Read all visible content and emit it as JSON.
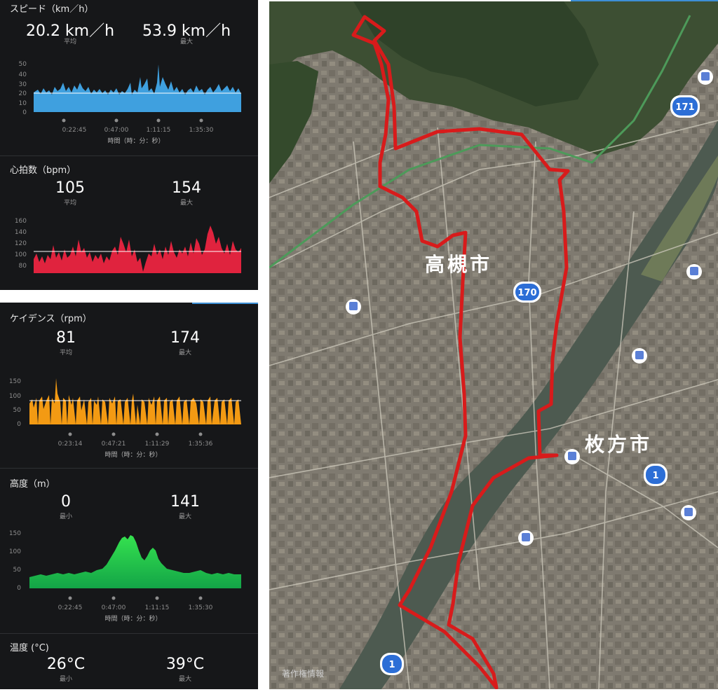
{
  "top_panel": {
    "speed": {
      "title": "スピード（km／h）",
      "avg_value": "20.2 km／h",
      "avg_label": "平均",
      "max_value": "53.9 km／h",
      "max_label": "最大",
      "color": "#3fa0df",
      "x_ticks": [
        "0:22:45",
        "0:47:00",
        "1:11:15",
        "1:35:30"
      ],
      "x_label": "時間（時：分：秒）",
      "y_ticks": [
        "50",
        "40",
        "30",
        "20",
        "10",
        "0"
      ]
    },
    "heart": {
      "title": "心拍数（bpm）",
      "avg_value": "105",
      "avg_label": "平均",
      "max_value": "154",
      "max_label": "最大",
      "color": "#e0233e",
      "y_ticks": [
        "160",
        "140",
        "120",
        "100",
        "80"
      ]
    }
  },
  "bottom_panel": {
    "cadence": {
      "title": "ケイデンス（rpm）",
      "avg_value": "81",
      "avg_label": "平均",
      "max_value": "174",
      "max_label": "最大",
      "color": "#f39a13",
      "x_ticks": [
        "0:23:14",
        "0:47:21",
        "1:11:29",
        "1:35:36"
      ],
      "x_label": "時間（時：分：秒）",
      "y_ticks": [
        "150",
        "100",
        "50",
        "0"
      ]
    },
    "altitude": {
      "title": "高度（m）",
      "min_value": "0",
      "min_label": "最小",
      "max_value": "141",
      "max_label": "最大",
      "color": "#22c94e",
      "x_ticks": [
        "0:22:45",
        "0:47:00",
        "1:11:15",
        "1:35:30"
      ],
      "x_label": "時間（時：分：秒）",
      "y_ticks": [
        "150",
        "100",
        "50",
        "0"
      ]
    },
    "temperature": {
      "title": "温度 (°C)",
      "min_value": "26°C",
      "min_label": "最小",
      "max_value": "39°C",
      "max_label": "最大"
    }
  },
  "map": {
    "city_takatsuki": "高槻市",
    "city_hirakata": "枚方市",
    "route_color": "#d81b1b",
    "road_170": "170",
    "road_171": "171",
    "road_1a": "1",
    "road_1b": "1",
    "copyright": "著作権情報"
  }
}
